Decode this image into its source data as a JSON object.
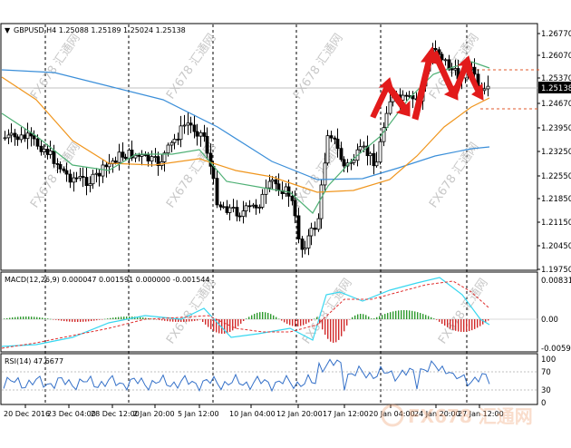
{
  "chart_title": "GBPUSD,H4  1.25088 1.25189 1.25024 1.25138",
  "price_current": "1.25138",
  "price_ticks": [
    "1.26770",
    "1.26070",
    "1.25370",
    "1.24670",
    "1.23950",
    "1.23250",
    "1.22550",
    "1.21850",
    "1.21150",
    "1.20450",
    "1.19750"
  ],
  "macd_label": "MACD(12,26,9) 0.000047 0.001591 0.000000 -0.001544",
  "macd_ticks": [
    "0.00831",
    "0.00",
    "-0.00599"
  ],
  "rsi_label": "RSI(14) 47.6677",
  "rsi_ticks": [
    "100",
    "70",
    "30",
    "0"
  ],
  "time_labels": [
    "20 Dec 2016",
    "23 Dec 04:00",
    "28 Dec 12:00",
    "2 Jan 20:00",
    "5 Jan 12:00",
    "10 Jan 04:00",
    "12 Jan 20:00",
    "17 Jan 12:00",
    "20 Jan 04:00",
    "24 Jan 20:00",
    "27 Jan 12:00"
  ],
  "watermark": "FX678 汇通网",
  "colors": {
    "ma_blue": "#3b8fd9",
    "ma_orange": "#f0961e",
    "ma_green": "#4fb075",
    "macd_pos": "#2e9a2e",
    "macd_neg": "#d22b2b",
    "signal": "#e03030",
    "macd_line": "#37d7f0",
    "rsi_line": "#3470c8",
    "arrow": "#e21b1b",
    "ref_line": "#e05a2b"
  }
}
